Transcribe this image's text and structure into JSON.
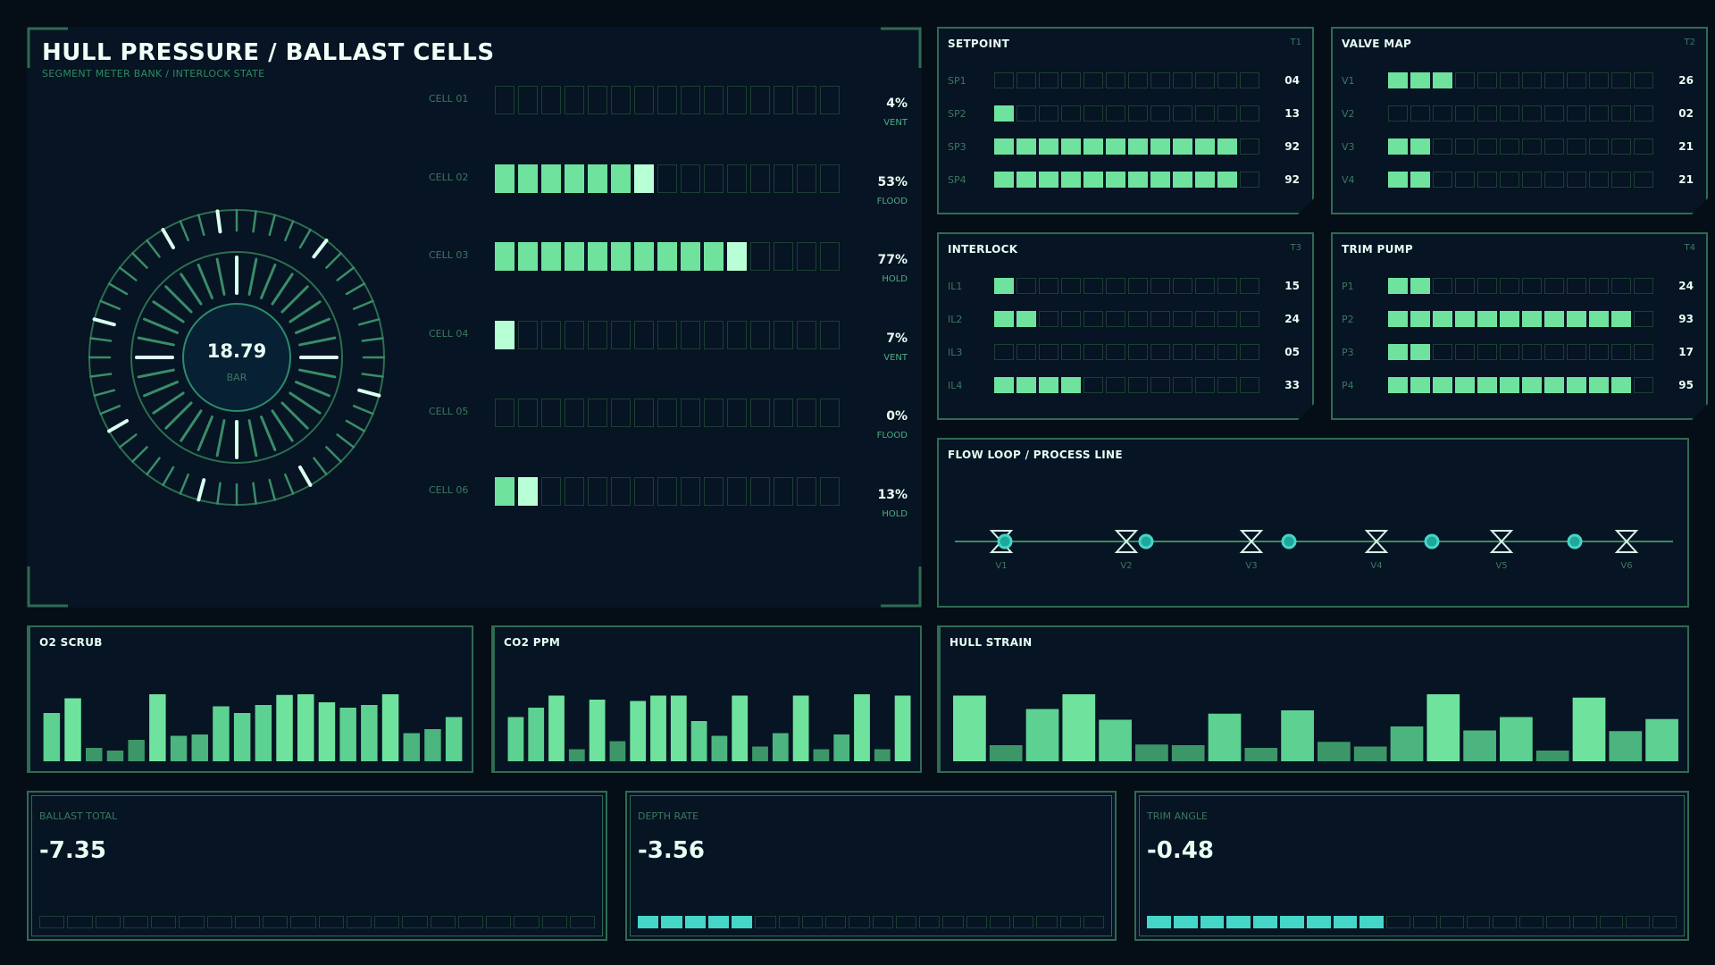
{
  "hero": {
    "title": "HULL PRESSURE / BALLAST CELLS",
    "subtitle": "SEGMENT METER BANK / INTERLOCK STATE",
    "gauge": {
      "value": "18.79",
      "unit": "BAR"
    },
    "cells": [
      {
        "label": "CELL 01",
        "percent": "4%",
        "status": "VENT",
        "lit": 0
      },
      {
        "label": "CELL 02",
        "percent": "53%",
        "status": "FLOOD",
        "lit": 7
      },
      {
        "label": "CELL 03",
        "percent": "77%",
        "status": "HOLD",
        "lit": 11
      },
      {
        "label": "CELL 04",
        "percent": "7%",
        "status": "VENT",
        "lit": 1
      },
      {
        "label": "CELL 05",
        "percent": "0%",
        "status": "FLOOD",
        "lit": 0
      },
      {
        "label": "CELL 06",
        "percent": "13%",
        "status": "HOLD",
        "lit": 2
      }
    ],
    "segments_total": 15
  },
  "meters": [
    {
      "title": "SETPOINT",
      "tag": "T1",
      "rows": [
        {
          "label": "SP1",
          "value": "04",
          "lit": 0
        },
        {
          "label": "SP2",
          "value": "13",
          "lit": 1
        },
        {
          "label": "SP3",
          "value": "92",
          "lit": 11
        },
        {
          "label": "SP4",
          "value": "92",
          "lit": 11
        }
      ]
    },
    {
      "title": "VALVE MAP",
      "tag": "T2",
      "rows": [
        {
          "label": "V1",
          "value": "26",
          "lit": 3
        },
        {
          "label": "V2",
          "value": "02",
          "lit": 0
        },
        {
          "label": "V3",
          "value": "21",
          "lit": 2
        },
        {
          "label": "V4",
          "value": "21",
          "lit": 2
        }
      ]
    },
    {
      "title": "INTERLOCK",
      "tag": "T3",
      "rows": [
        {
          "label": "IL1",
          "value": "15",
          "lit": 1
        },
        {
          "label": "IL2",
          "value": "24",
          "lit": 2
        },
        {
          "label": "IL3",
          "value": "05",
          "lit": 0
        },
        {
          "label": "IL4",
          "value": "33",
          "lit": 4
        }
      ]
    },
    {
      "title": "TRIM PUMP",
      "tag": "T4",
      "rows": [
        {
          "label": "P1",
          "value": "24",
          "lit": 2
        },
        {
          "label": "P2",
          "value": "93",
          "lit": 11
        },
        {
          "label": "P3",
          "value": "17",
          "lit": 2
        },
        {
          "label": "P4",
          "value": "95",
          "lit": 11
        }
      ]
    }
  ],
  "meter_segments_total": 12,
  "flow": {
    "title": "FLOW LOOP / PROCESS LINE",
    "valves": [
      "V1",
      "V2",
      "V3",
      "V4",
      "V5",
      "V6"
    ]
  },
  "bar_panels": [
    {
      "title": "O2 SCRUB",
      "values": [
        0.72,
        0.94,
        0.2,
        0.16,
        0.32,
        1.0,
        0.38,
        0.4,
        0.82,
        0.72,
        0.84,
        0.99,
        1.0,
        0.88,
        0.8,
        0.84,
        1.0,
        0.42,
        0.48,
        0.66
      ]
    },
    {
      "title": "CO2 PPM",
      "values": [
        0.66,
        0.8,
        0.98,
        0.18,
        0.92,
        0.3,
        0.9,
        0.98,
        0.98,
        0.6,
        0.38,
        0.98,
        0.22,
        0.42,
        0.98,
        0.18,
        0.4,
        1.0,
        0.18,
        0.98
      ]
    },
    {
      "title": "HULL STRAIN",
      "values": [
        0.98,
        0.24,
        0.78,
        1.0,
        0.62,
        0.25,
        0.24,
        0.71,
        0.2,
        0.76,
        0.29,
        0.22,
        0.52,
        1.0,
        0.46,
        0.66,
        0.16,
        0.95,
        0.45,
        0.63
      ]
    }
  ],
  "readouts": [
    {
      "label": "BALLAST TOTAL",
      "value": "-7.35",
      "lit": 0,
      "total": 20
    },
    {
      "label": "DEPTH RATE",
      "value": "-3.56",
      "lit": 5,
      "total": 20
    },
    {
      "label": "TRIM ANGLE",
      "value": "-0.48",
      "lit": 9,
      "total": 20
    }
  ],
  "colors": {
    "accent": "#6fe39e",
    "highlight": "#b8ffd6",
    "cyan": "#46d6c8",
    "border": "#2f6b52",
    "muted": "#3d7860"
  }
}
